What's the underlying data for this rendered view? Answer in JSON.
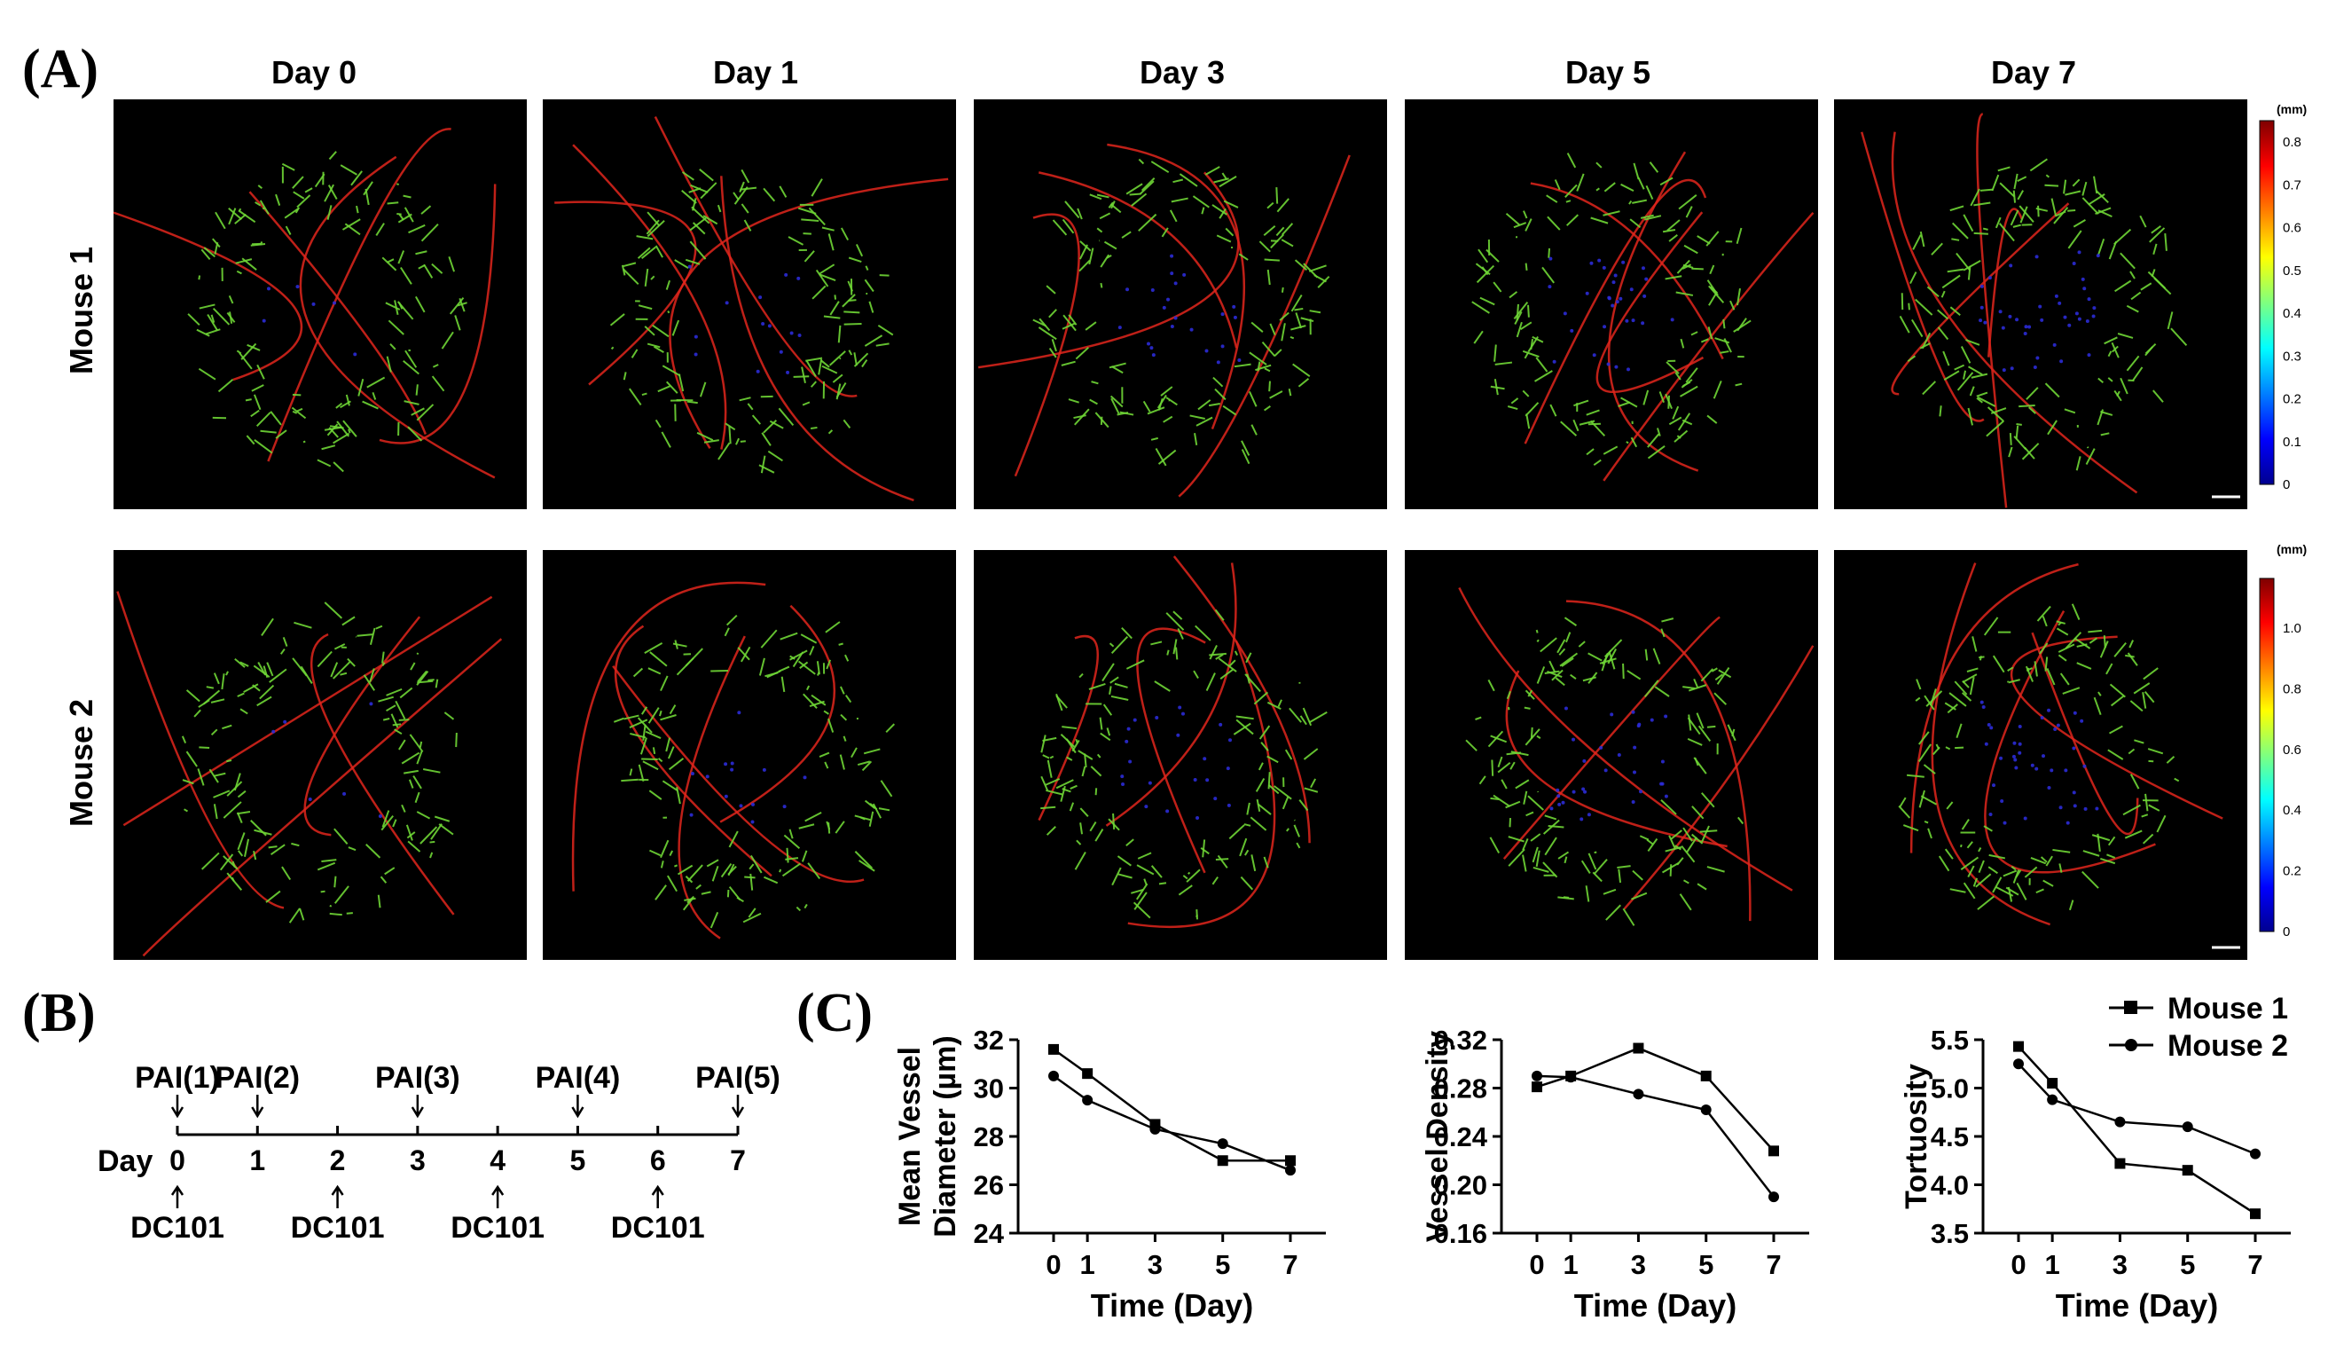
{
  "panel_labels": {
    "a": "(A)",
    "b": "(B)",
    "c": "(C)"
  },
  "panel_a": {
    "day_labels": [
      "Day 0",
      "Day 1",
      "Day 3",
      "Day 5",
      "Day 7"
    ],
    "row_labels": [
      "Mouse 1",
      "Mouse 2"
    ],
    "colorbar_units": "(mm)",
    "colorbar1_ticks": [
      "0.8",
      "0.7",
      "0.6",
      "0.5",
      "0.4",
      "0.3",
      "0.2",
      "0.1",
      "0"
    ],
    "colorbar2_ticks": [
      "1.0",
      "0.8",
      "0.6",
      "0.4",
      "0.2",
      "0"
    ],
    "colors": {
      "vessel_small": "#2b2bd6",
      "vessel_mid": "#6fd636",
      "vessel_large": "#e0261c",
      "background": "#000000"
    }
  },
  "panel_b": {
    "pai_labels": [
      "PAI(1)",
      "PAI(2)",
      "PAI(3)",
      "PAI(4)",
      "PAI(5)"
    ],
    "pai_days": [
      0,
      1,
      3,
      5,
      7
    ],
    "day_axis_label": "Day",
    "day_ticks": [
      "0",
      "1",
      "2",
      "3",
      "4",
      "5",
      "6",
      "7"
    ],
    "dc101_labels": [
      "DC101",
      "DC101",
      "DC101",
      "DC101"
    ],
    "dc101_days": [
      0,
      2,
      4,
      6
    ]
  },
  "legend": {
    "entries": [
      "Mouse 1",
      "Mouse 2"
    ]
  },
  "chart_data": [
    {
      "type": "line",
      "xlabel": "Time (Day)",
      "ylabel": "Mean Vessel Diameter (µm)",
      "ylabel_lines": [
        "Mean Vessel",
        "Diameter (µm)"
      ],
      "x": [
        0,
        1,
        3,
        5,
        7
      ],
      "xticks": [
        "0",
        "1",
        "3",
        "5",
        "7"
      ],
      "ylim": [
        24,
        32
      ],
      "yticks": [
        "24",
        "26",
        "28",
        "30",
        "32"
      ],
      "series": [
        {
          "name": "Mouse 1",
          "values": [
            31.6,
            30.6,
            28.5,
            27.0,
            27.0
          ]
        },
        {
          "name": "Mouse 2",
          "values": [
            30.5,
            29.5,
            28.3,
            27.7,
            26.6
          ]
        }
      ]
    },
    {
      "type": "line",
      "xlabel": "Time (Day)",
      "ylabel": "Vessel Density",
      "ylabel_lines": [
        "Vessel Density"
      ],
      "x": [
        0,
        1,
        3,
        5,
        7
      ],
      "xticks": [
        "0",
        "1",
        "3",
        "5",
        "7"
      ],
      "ylim": [
        0.16,
        0.32
      ],
      "yticks": [
        "0.16",
        "0.20",
        "0.24",
        "0.28",
        "0.32"
      ],
      "series": [
        {
          "name": "Mouse 1",
          "values": [
            0.281,
            0.29,
            0.313,
            0.29,
            0.228
          ]
        },
        {
          "name": "Mouse 2",
          "values": [
            0.29,
            0.289,
            0.275,
            0.262,
            0.19
          ]
        }
      ]
    },
    {
      "type": "line",
      "xlabel": "Time (Day)",
      "ylabel": "Tortuosity",
      "ylabel_lines": [
        "Tortuosity"
      ],
      "x": [
        0,
        1,
        3,
        5,
        7
      ],
      "xticks": [
        "0",
        "1",
        "3",
        "5",
        "7"
      ],
      "ylim": [
        3.5,
        5.5
      ],
      "yticks": [
        "3.5",
        "4.0",
        "4.5",
        "5.0",
        "5.5"
      ],
      "series": [
        {
          "name": "Mouse 1",
          "values": [
            5.43,
            5.05,
            4.22,
            4.15,
            3.7
          ]
        },
        {
          "name": "Mouse 2",
          "values": [
            5.25,
            4.88,
            4.65,
            4.6,
            4.32
          ]
        }
      ]
    }
  ]
}
